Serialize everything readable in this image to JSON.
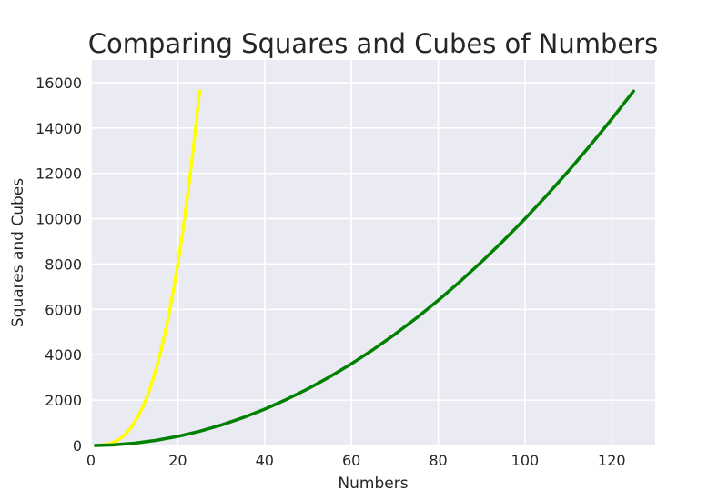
{
  "chart_data": {
    "type": "line",
    "title": "Comparing Squares and Cubes of Numbers",
    "xlabel": "Numbers",
    "ylabel": "Squares and Cubes",
    "xlim": [
      0,
      130
    ],
    "ylim": [
      0,
      17000
    ],
    "xticks": [
      "0",
      "20",
      "40",
      "60",
      "80",
      "100",
      "120"
    ],
    "yticks": [
      "0",
      "2000",
      "4000",
      "6000",
      "8000",
      "10000",
      "12000",
      "14000",
      "16000"
    ],
    "grid": true,
    "background": "#eaeaf2",
    "gridColor": "#ffffff",
    "series": [
      {
        "color": "#ffff00",
        "x": [
          1,
          2,
          3,
          4,
          5,
          6,
          7,
          8,
          9,
          10,
          11,
          12,
          13,
          14,
          15,
          16,
          17,
          18,
          19,
          20,
          21,
          22,
          23,
          24,
          25
        ],
        "y": [
          1,
          8,
          27,
          64,
          125,
          216,
          343,
          512,
          729,
          1000,
          1331,
          1728,
          2197,
          2744,
          3375,
          4096,
          4913,
          5832,
          6859,
          8000,
          9261,
          10648,
          12167,
          13824,
          15625
        ]
      },
      {
        "color": "#008000",
        "x": [
          1,
          5,
          10,
          15,
          20,
          25,
          30,
          35,
          40,
          45,
          50,
          55,
          60,
          65,
          70,
          75,
          80,
          85,
          90,
          95,
          100,
          105,
          110,
          115,
          120,
          125
        ],
        "y": [
          1,
          25,
          100,
          225,
          400,
          625,
          900,
          1225,
          1600,
          2025,
          2500,
          3025,
          3600,
          4225,
          4900,
          5625,
          6400,
          7225,
          8100,
          9025,
          10000,
          11025,
          12100,
          13225,
          14400,
          15625
        ]
      }
    ]
  }
}
